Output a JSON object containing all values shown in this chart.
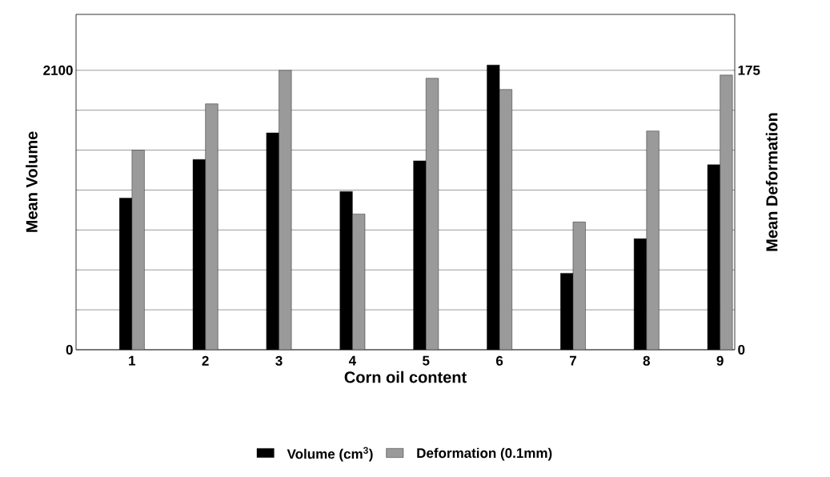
{
  "chart_data": {
    "type": "bar",
    "xlabel": "Corn oil content",
    "ylabel": "Mean Volume",
    "y2label": "Mean Deformation",
    "categories": [
      "1",
      "2",
      "3",
      "4",
      "5",
      "6",
      "7",
      "8",
      "9"
    ],
    "series": [
      {
        "name": "Volume (cm$^{3}$)",
        "color": "#000000",
        "values": [
          1140,
          1430,
          1630,
          1190,
          1420,
          2140,
          575,
          835,
          1390
        ]
      },
      {
        "name": "Deformation (0.1mm)",
        "color": "#9a9a9a",
        "axis": "y2",
        "values": [
          125,
          154,
          175,
          85,
          170,
          163,
          80,
          137,
          172
        ]
      }
    ],
    "ylim": [
      0,
      2520
    ],
    "yticks": [
      0,
      {
        "value": 300,
        "label": null
      },
      {
        "value": 600,
        "label": null
      },
      {
        "value": 900,
        "label": null
      },
      {
        "value": 1200,
        "label": null
      },
      {
        "value": 1500,
        "label": null
      },
      {
        "value": 1800,
        "label": null
      },
      2100
    ],
    "y2lim": [
      0,
      210
    ],
    "y2ticks": [
      0,
      175
    ],
    "grid": "y",
    "legend": "bottom"
  }
}
